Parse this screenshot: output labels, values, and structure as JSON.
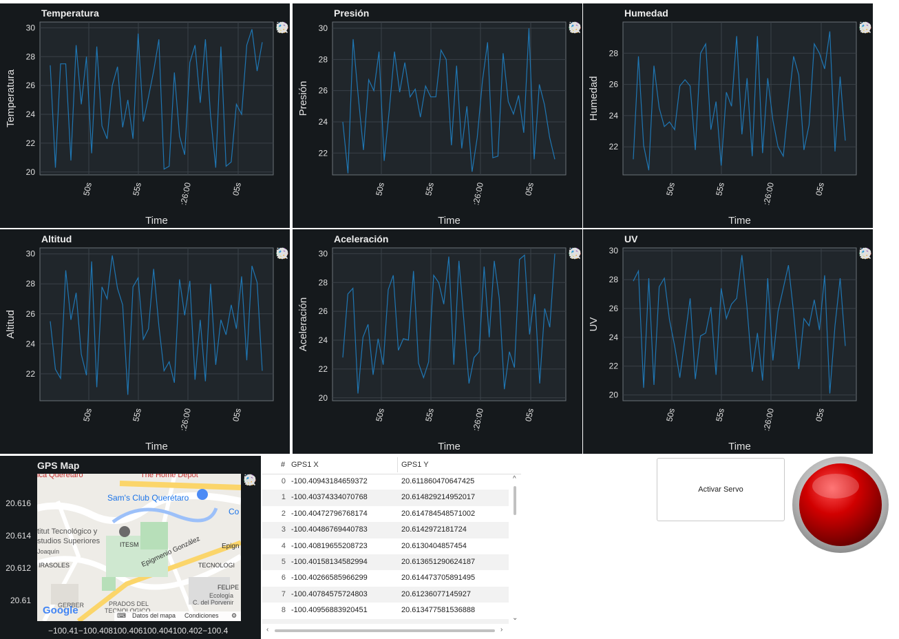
{
  "panels": [
    {
      "id": "temperatura",
      "title": "Temperatura",
      "ylabel": "Temperatura",
      "xlabel": "Time",
      "ylim": [
        19.8,
        30.4
      ],
      "yticks": [
        20,
        22,
        24,
        26,
        28,
        30
      ],
      "values": [
        27.4,
        20.3,
        27.5,
        27.5,
        20.8,
        28.8,
        24.7,
        28.0,
        21.3,
        28.7,
        23.2,
        22.3,
        26.0,
        27.3,
        23.1,
        25.0,
        22.3,
        29.6,
        23.5,
        25.2,
        27.0,
        29.2,
        20.2,
        20.4,
        26.9,
        22.5,
        21.2,
        27.6,
        28.8,
        24.8,
        29.2,
        23.9,
        20.3,
        28.7,
        20.4,
        20.7,
        24.7,
        24.0,
        28.8,
        29.9,
        27.0,
        29.0
      ]
    },
    {
      "id": "presion",
      "title": "Presión",
      "ylabel": "Presión",
      "xlabel": "Time",
      "ylim": [
        20.6,
        30.4
      ],
      "yticks": [
        22,
        24,
        26,
        28,
        30
      ],
      "values": [
        24.0,
        20.7,
        29.3,
        25.6,
        22.2,
        26.7,
        26.0,
        28.5,
        21.5,
        24.8,
        28.5,
        25.9,
        27.8,
        25.6,
        26.1,
        24.3,
        26.3,
        25.6,
        25.6,
        28.6,
        28.0,
        22.5,
        27.6,
        22.3,
        25.0,
        20.8,
        23.0,
        26.6,
        29.1,
        21.7,
        21.8,
        28.4,
        25.3,
        24.5,
        25.7,
        23.3,
        30.0,
        21.6,
        26.4,
        25.1,
        23.0,
        21.6
      ]
    },
    {
      "id": "humedad",
      "title": "Humedad",
      "ylabel": "Humedad",
      "xlabel": "Time",
      "ylim": [
        20.2,
        30.0
      ],
      "yticks": [
        22,
        24,
        26,
        28
      ],
      "values": [
        21.2,
        27.8,
        22.1,
        20.5,
        27.2,
        24.5,
        23.3,
        23.6,
        23.1,
        25.9,
        26.3,
        25.9,
        21.8,
        28.0,
        28.6,
        23.1,
        24.9,
        20.8,
        25.5,
        24.6,
        29.1,
        22.8,
        26.4,
        21.4,
        29.1,
        21.6,
        26.4,
        23.7,
        22.0,
        21.4,
        24.7,
        27.8,
        26.6,
        21.8,
        23.4,
        28.6,
        28.0,
        27.0,
        29.4,
        21.7,
        26.5,
        22.4
      ]
    },
    {
      "id": "altitud",
      "title": "Altitud",
      "ylabel": "Altitud",
      "xlabel": "Time",
      "ylim": [
        20.2,
        30.4
      ],
      "yticks": [
        22,
        24,
        26,
        28,
        30
      ],
      "values": [
        25.5,
        22.3,
        21.7,
        28.9,
        25.6,
        27.4,
        23.3,
        21.9,
        29.5,
        21.1,
        27.8,
        27.0,
        29.9,
        27.7,
        26.6,
        20.6,
        27.8,
        28.4,
        24.3,
        25.0,
        29.0,
        25.2,
        22.2,
        22.8,
        21.4,
        28.3,
        25.9,
        28.2,
        21.6,
        25.6,
        21.5,
        28.0,
        22.6,
        25.6,
        24.6,
        26.6,
        25.0,
        28.5,
        22.9,
        29.2,
        28.1,
        22.2
      ]
    },
    {
      "id": "aceleracion",
      "title": "Aceleración",
      "ylabel": "Aceleración",
      "xlabel": "Time",
      "ylim": [
        19.8,
        30.4
      ],
      "yticks": [
        20,
        22,
        24,
        26,
        28,
        30
      ],
      "values": [
        22.8,
        27.2,
        27.6,
        20.3,
        24.2,
        25.1,
        21.6,
        24.1,
        22.3,
        27.5,
        28.5,
        23.3,
        24.1,
        24.0,
        28.8,
        22.4,
        21.4,
        22.5,
        28.5,
        28.0,
        26.5,
        29.8,
        22.3,
        29.5,
        25.3,
        21.0,
        22.8,
        23.2,
        29.1,
        24.2,
        29.5,
        26.9,
        20.6,
        23.2,
        22.1,
        29.6,
        29.9,
        24.4,
        27.2,
        21.0,
        26.2,
        24.9,
        30.0
      ]
    },
    {
      "id": "uv",
      "title": "UV",
      "ylabel": "UV",
      "xlabel": "Time",
      "ylim": [
        19.6,
        30.2
      ],
      "yticks": [
        20,
        22,
        24,
        26,
        28,
        30
      ],
      "values": [
        27.9,
        28.6,
        20.5,
        28.1,
        20.7,
        27.5,
        28.1,
        25.2,
        23.4,
        21.2,
        24.0,
        26.7,
        21.1,
        24.1,
        24.3,
        26.1,
        21.4,
        27.4,
        25.3,
        26.3,
        26.7,
        29.7,
        26.0,
        21.6,
        24.3,
        21.0,
        28.1,
        22.4,
        25.8,
        27.4,
        29.0,
        25.7,
        21.8,
        25.3,
        24.8,
        26.6,
        24.5,
        28.3,
        20.1,
        24.8,
        28.1,
        23.4
      ]
    }
  ],
  "x_axis": {
    "ticks": [
      "50s",
      "55s",
      ":26:00",
      "05s"
    ]
  },
  "toolbar": {
    "icons": [
      "bokeh-logo-icon",
      "pan-icon",
      "box-zoom-icon",
      "wheel-zoom-icon",
      "save-icon",
      "reset-icon",
      "help-icon"
    ]
  },
  "gps": {
    "title": "GPS Map",
    "yticks": [
      "20.616",
      "20.614",
      "20.612",
      "20.61"
    ],
    "xticks_text": "−100.41−100.408100.406100.404100.402−100.4",
    "map_labels": {
      "queretaro": "ica Querétaro",
      "depot": "The Home Depot",
      "sams": "Sam's Club Querétaro",
      "co": "Co",
      "tec1": "titut Tecnológico y",
      "tec2": "studios Superiores",
      "joaquin": "Joaquín",
      "itesm": "ITESM",
      "epig_gonz": "Epigmenio González",
      "epig": "Epign",
      "irasoles": "IRASOLES",
      "tecnolo": "TECNOLOGI",
      "felipe": "FELIPE",
      "ecologia": "Ecología",
      "porvenir": "C. del Porvenir",
      "gerber": "GERBER",
      "prados": "PRADOS DEL",
      "tecnologico": "TECNOLOGICO",
      "google": "Google",
      "datos": "Datos del mapa",
      "condiciones": "Condiciones"
    }
  },
  "table": {
    "headers": [
      "#",
      "GPS1 X",
      "GPS1 Y"
    ],
    "rows": [
      [
        "0",
        "-100.40943184659372",
        "20.611860470647425"
      ],
      [
        "1",
        "-100.40374334070768",
        "20.614829214952017"
      ],
      [
        "2",
        "-100.40472796768174",
        "20.614784548571002"
      ],
      [
        "3",
        "-100.40486769440783",
        "20.6142972181724"
      ],
      [
        "4",
        "-100.40819655208723",
        "20.6130404857454"
      ],
      [
        "5",
        "-100.40158134582994",
        "20.613651290624187"
      ],
      [
        "6",
        "-100.40266585966299",
        "20.614473705891495"
      ],
      [
        "7",
        "-100.40784575724803",
        "20.61236077145927"
      ],
      [
        "8",
        "-100.40956883920451",
        "20.613477581536888"
      ]
    ]
  },
  "servo": {
    "label": "Activar Servo"
  },
  "colors": {
    "panel_bg": "#15191c",
    "plot_bg": "#20262b",
    "grid": "#3a4148",
    "line": "#1f77b4",
    "text": "#e0e0e0",
    "button_red": "#cc0000"
  }
}
